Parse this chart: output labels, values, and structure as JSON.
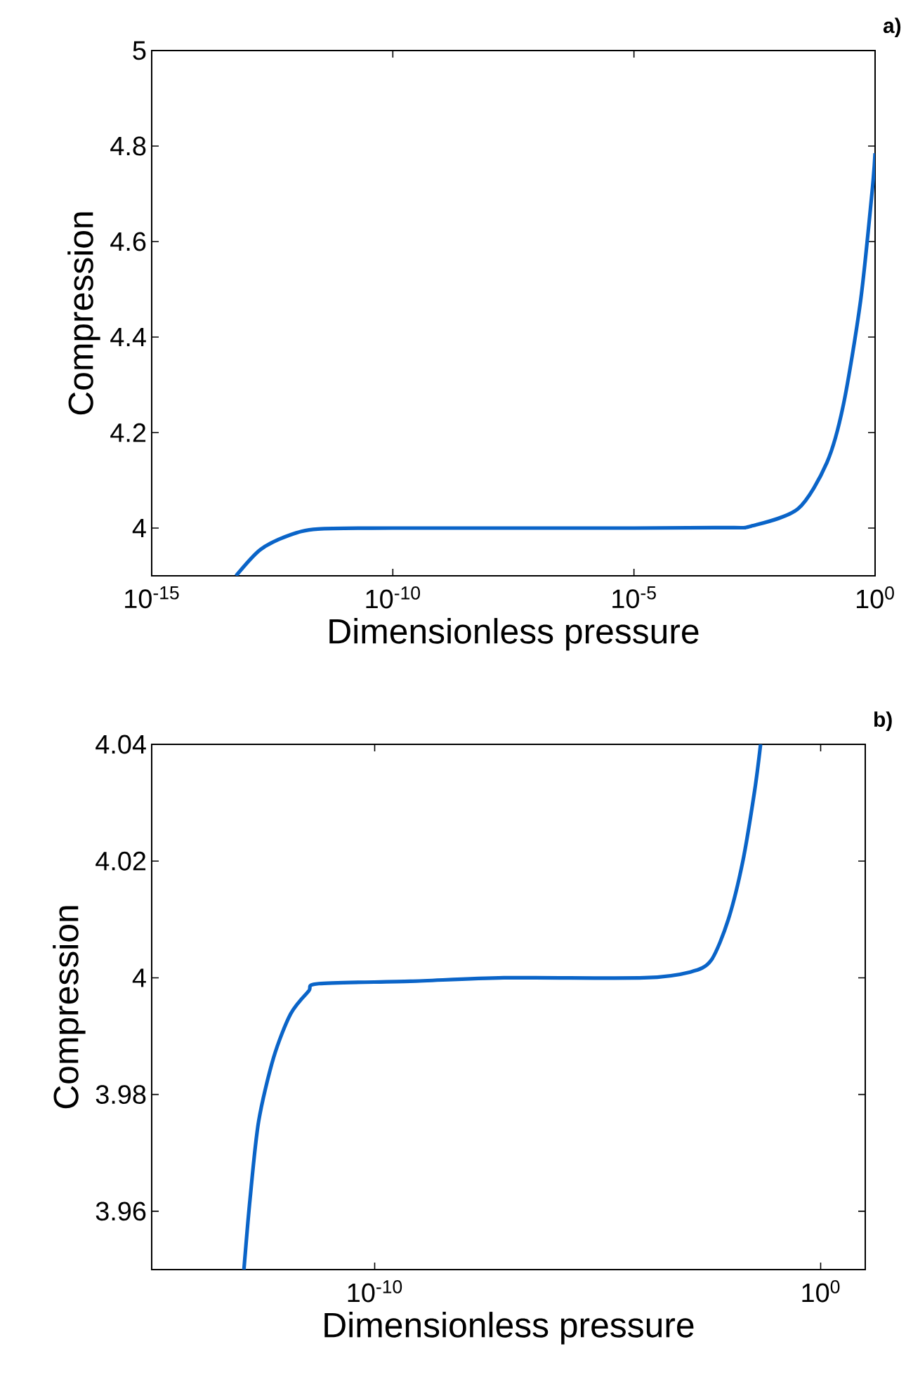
{
  "chart_data": [
    {
      "type": "line",
      "title": "a)",
      "xlabel": "Dimensionless pressure",
      "ylabel": "Compression",
      "log": "x",
      "color": "#0a64c8",
      "x": [
        5.6e-14,
        1.8e-13,
        7.1e-13,
        2.8e-12,
        1e-10,
        1e-05,
        0.001,
        0.0027,
        0.025,
        0.1,
        0.22,
        0.5,
        0.87,
        1
      ],
      "values": [
        3.9,
        3.955,
        3.985,
        3.998,
        4.0,
        4.0,
        4.001,
        4.004,
        4.04,
        4.137,
        4.258,
        4.476,
        4.706,
        4.785
      ],
      "xlim": [
        1e-15,
        1
      ],
      "ylim": [
        3.9,
        5
      ],
      "xticks": [
        {
          "value": 1e-15,
          "label": "10$^{-15}$"
        },
        {
          "value": 1e-10,
          "label": "10$^{-10}$"
        },
        {
          "value": 1e-05,
          "label": "10$^{-5}$"
        },
        {
          "value": 1,
          "label": "10$^{0}$"
        }
      ],
      "yticks": [
        4,
        4.2,
        4.4,
        4.6,
        4.8,
        5
      ]
    },
    {
      "type": "line",
      "title": "b)",
      "xlabel": "Dimensionless pressure",
      "ylabel": "Compression",
      "log": "x",
      "color": "#0a64c8",
      "x": [
        1.17e-13,
        1.6e-13,
        2.5e-13,
        5.4e-13,
        1.3e-12,
        3.3e-12,
        5.6e-12,
        6.3e-10,
        7.9e-08,
        0.00011,
        0.0012,
        0.0035,
        0.0085,
        0.018,
        0.033,
        0.045
      ],
      "values": [
        3.95,
        3.962,
        3.9754,
        3.9863,
        3.9938,
        3.9977,
        3.999,
        3.9994,
        4.0,
        4.0,
        4.001,
        4.003,
        4.01,
        4.02,
        4.032,
        4.04
      ],
      "xlim": [
        1e-15,
        10
      ],
      "ylim": [
        3.95,
        4.04
      ],
      "xticks": [
        {
          "value": 1e-10,
          "label": "10$^{-10}$"
        },
        {
          "value": 1,
          "label": "10$^{0}$"
        }
      ],
      "yticks": [
        3.96,
        3.98,
        4,
        4.02,
        4.04
      ]
    }
  ]
}
